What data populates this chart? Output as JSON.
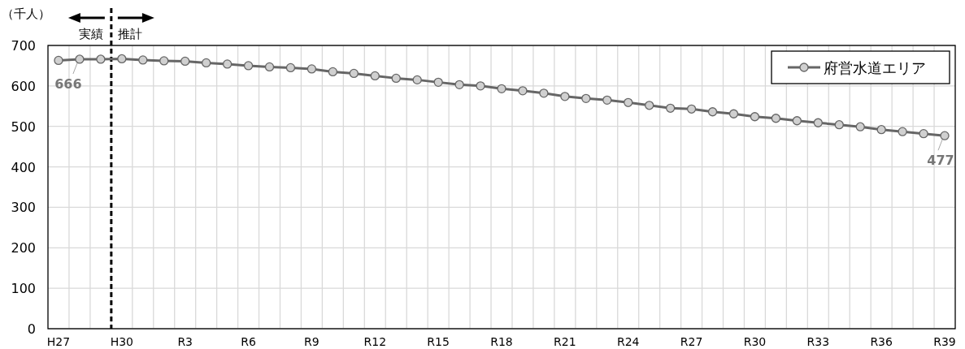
{
  "chart_data": {
    "type": "line",
    "ylabel": "（千人）",
    "categories": [
      "H27",
      null,
      null,
      "H30",
      null,
      null,
      "R3",
      null,
      null,
      "R6",
      null,
      null,
      "R9",
      null,
      null,
      "R12",
      null,
      null,
      "R15",
      null,
      null,
      "R18",
      null,
      null,
      "R21",
      null,
      null,
      "R24",
      null,
      null,
      "R27",
      null,
      null,
      "R30",
      null,
      null,
      "R33",
      null,
      null,
      "R36",
      null,
      null,
      "R39"
    ],
    "series": [
      {
        "name": "府営水道エリア",
        "color": "#666666",
        "values": [
          663,
          666,
          666,
          667,
          664,
          662,
          661,
          657,
          654,
          650,
          647,
          645,
          642,
          635,
          631,
          625,
          619,
          615,
          609,
          603,
          600,
          593,
          588,
          582,
          574,
          569,
          565,
          559,
          552,
          545,
          543,
          536,
          531,
          524,
          520,
          514,
          509,
          504,
          499,
          492,
          487,
          482,
          477
        ]
      }
    ],
    "ylim": [
      0,
      700
    ],
    "yticks": [
      0,
      100,
      200,
      300,
      400,
      500,
      600,
      700
    ],
    "grid": true,
    "legend": "top right",
    "marker": "circle",
    "line_style": "solid",
    "annotations": [
      "実績",
      "推計",
      {
        "text": "666",
        "y": 666
      },
      {
        "text": "477",
        "x": "R39",
        "y": 477
      }
    ]
  }
}
